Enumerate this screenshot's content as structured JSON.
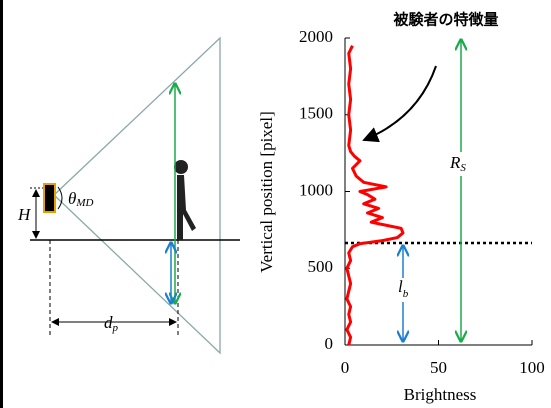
{
  "chart_data": {
    "type": "line",
    "title": "被験者の特徴量",
    "x_label": "Brightness",
    "y_label": "Vertical position [pixel]",
    "x": [
      2,
      3,
      1,
      3,
      2,
      3,
      1,
      2,
      3,
      2,
      1,
      3,
      2,
      4,
      8,
      20,
      28,
      31,
      30,
      22,
      14,
      20,
      12,
      18,
      10,
      16,
      12,
      8,
      22,
      10,
      6,
      4,
      8,
      5,
      3,
      2,
      3,
      2,
      3,
      2,
      3,
      2,
      4
    ],
    "values": [
      0,
      50,
      100,
      150,
      200,
      250,
      300,
      350,
      400,
      450,
      500,
      550,
      600,
      640,
      660,
      680,
      700,
      730,
      760,
      780,
      800,
      830,
      860,
      890,
      920,
      950,
      980,
      1000,
      1030,
      1060,
      1100,
      1150,
      1200,
      1230,
      1260,
      1300,
      1400,
      1500,
      1600,
      1700,
      1800,
      1900,
      1950
    ],
    "color": "#ff0000",
    "xlim": [
      0,
      100
    ],
    "xticks": [
      0,
      50,
      100
    ],
    "ylim": [
      0,
      2000
    ],
    "yticks": [
      0,
      500,
      1000,
      1500,
      2000
    ],
    "annotations": [
      {
        "main": "R",
        "sub": "S"
      },
      {
        "main": "l",
        "sub": "b"
      }
    ]
  },
  "diagram": {
    "height_label": "H",
    "angle_label": {
      "main": "θ",
      "sub": "MD"
    },
    "distance_label": {
      "main": "d",
      "sub": "p"
    }
  }
}
